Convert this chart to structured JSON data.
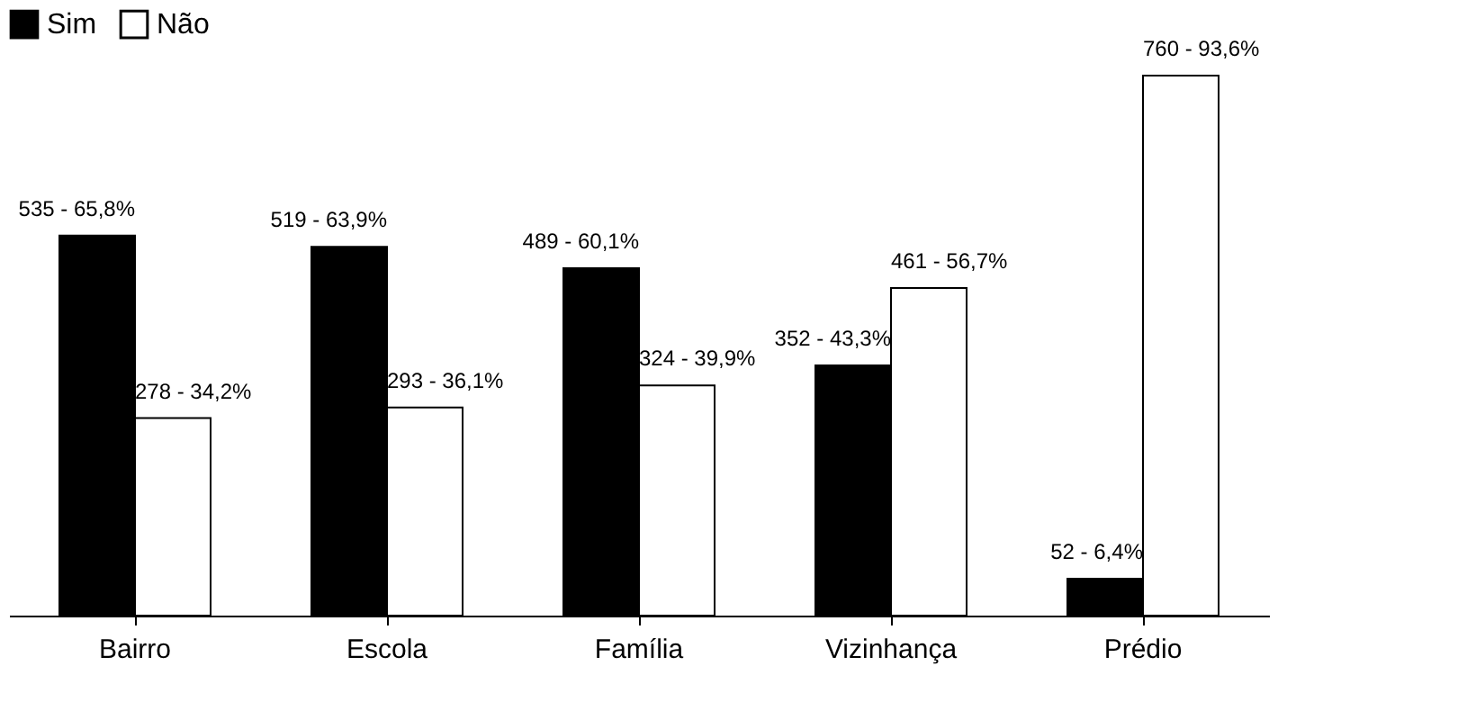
{
  "chart_data": {
    "type": "bar",
    "categories": [
      "Bairro",
      "Escola",
      "Família",
      "Vizinhança",
      "Prédio"
    ],
    "series": [
      {
        "name": "Sim",
        "color": "#000000",
        "values": [
          535,
          519,
          489,
          352,
          52
        ],
        "value_labels": [
          "535 - 65,8%",
          "519 - 63,9%",
          "489 - 60,1%",
          "352 - 43,3%",
          "52 - 6,4%"
        ]
      },
      {
        "name": "Não",
        "color": "#ffffff",
        "values": [
          278,
          293,
          324,
          461,
          760
        ],
        "value_labels": [
          "278 - 34,2%",
          "293 - 36,1%",
          "324 - 39,9%",
          "461 - 56,7%",
          "760 - 93,6%"
        ]
      }
    ],
    "legend": "top",
    "grid": false
  }
}
